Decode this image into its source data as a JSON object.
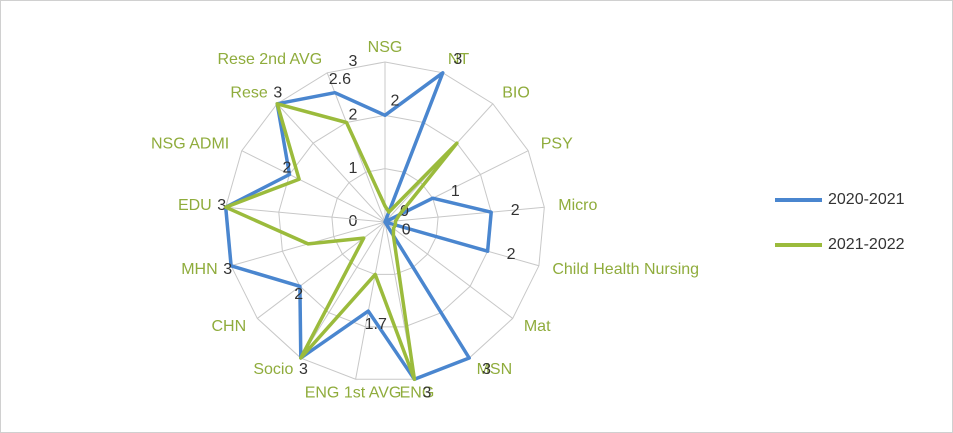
{
  "chart_data": {
    "type": "radar",
    "categories": [
      "NSG",
      "NT",
      "BIO",
      "PSY",
      "Micro",
      "Child Health Nursing",
      "Mat",
      "MSN",
      "ENG",
      "ENG 1st AVG",
      "Socio",
      "CHN",
      "MHN",
      "EDU",
      "NSG ADMI",
      "Rese",
      "Rese 2nd AVG"
    ],
    "series": [
      {
        "name": "2020-2021",
        "color": "#4a86cf",
        "values": [
          2,
          3,
          0,
          1,
          2,
          2,
          0,
          3,
          3,
          1.7,
          3,
          2,
          3,
          3,
          2,
          3,
          2.6
        ]
      },
      {
        "name": "2021-2022",
        "color": "#9bbb3c",
        "values": [
          0.3,
          0.2,
          2,
          0.3,
          0.2,
          0.2,
          0.2,
          0.3,
          3,
          1,
          3,
          0.5,
          1.5,
          3,
          1.8,
          3,
          2
        ]
      }
    ],
    "ylim": [
      0,
      3
    ],
    "yticks": [
      0,
      1,
      2,
      3
    ],
    "grid": true,
    "legend": "right"
  }
}
